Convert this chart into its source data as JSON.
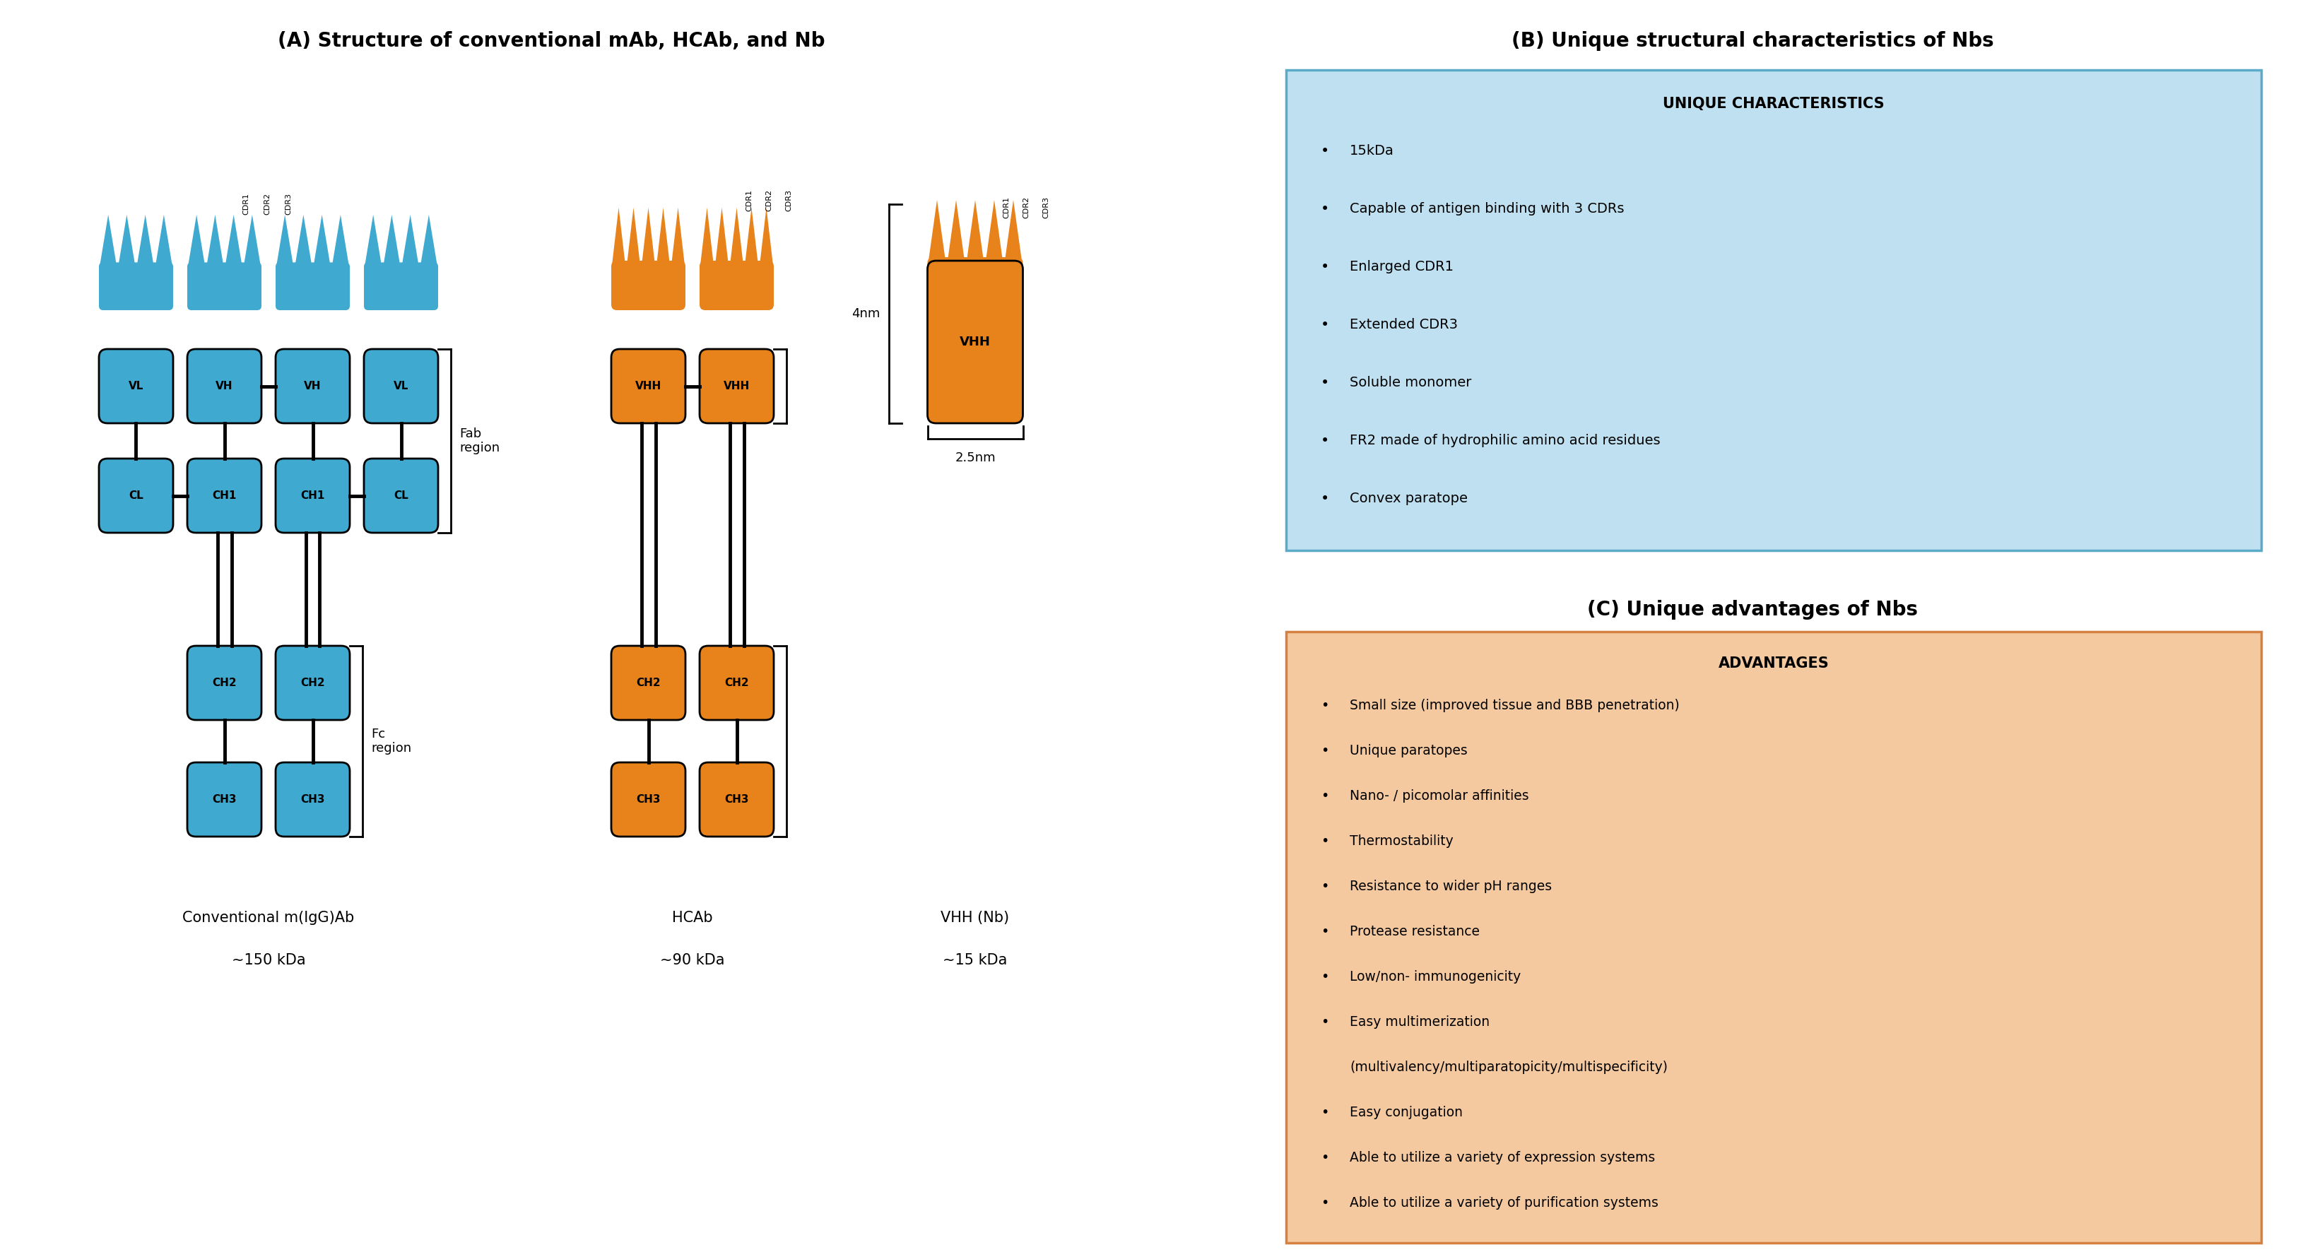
{
  "title_A": "(A) Structure of conventional mAb, HCAb, and Nb",
  "title_B": "(B) Unique structural characteristics of Nbs",
  "title_C": "(C) Unique advantages of Nbs",
  "blue_color": "#3FA9D0",
  "orange_color": "#E8821A",
  "bg_color": "#FFFFFF",
  "box_B_bg": "#BEE0F0",
  "box_B_border": "#5AAAC8",
  "box_C_bg": "#F5C9A0",
  "box_C_border": "#D48040",
  "label_mAb_line1": "Conventional m(IgG)Ab",
  "label_mAb_line2": "~150 kDa",
  "label_HCAb_line1": "HCAb",
  "label_HCAb_line2": "~90 kDa",
  "label_VHH_line1": "VHH (Nb)",
  "label_VHH_line2": "~15 kDa",
  "char_title": "UNIQUE CHARACTERISTICS",
  "char_items": [
    "15kDa",
    "Capable of antigen binding with 3 CDRs",
    "Enlarged CDR1",
    "Extended CDR3",
    "Soluble monomer",
    "FR2 made of hydrophilic amino acid residues",
    "Convex paratope"
  ],
  "adv_title": "ADVANTAGES",
  "adv_items": [
    "Small size (improved tissue and BBB penetration)",
    "Unique paratopes",
    "Nano- / picomolar affinities",
    "Thermostability",
    "Resistance to wider pH ranges",
    "Protease resistance",
    "Low/non- immunogenicity",
    "Easy multimerization",
    "(multivalency/multiparatopicity/multispecificity)",
    "Easy conjugation",
    "Able to utilize a variety of expression systems",
    "Able to utilize a variety of purification systems"
  ],
  "adv_indent": [
    false,
    false,
    false,
    false,
    false,
    false,
    false,
    false,
    true,
    false,
    false,
    false
  ],
  "dim_4nm": "4nm",
  "dim_25nm": "2.5nm"
}
